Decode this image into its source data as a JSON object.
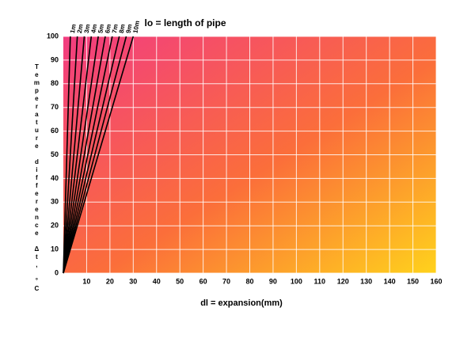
{
  "chart_data": {
    "type": "line",
    "title": "lo = length of pipe",
    "x_label": "dl = expansion(mm)",
    "y_label": "Temperature difference Δt, °C",
    "xlim": [
      0,
      160
    ],
    "ylim": [
      0,
      100
    ],
    "xticks": [
      10,
      20,
      30,
      40,
      50,
      60,
      70,
      80,
      90,
      100,
      110,
      120,
      130,
      140,
      150,
      160
    ],
    "yticks": [
      0,
      10,
      20,
      30,
      40,
      50,
      60,
      70,
      80,
      90,
      100
    ],
    "grid": true,
    "series": [
      {
        "name": "1m",
        "color": "#000000",
        "x": [
          0,
          3
        ],
        "values": [
          0,
          100
        ]
      },
      {
        "name": "2m",
        "color": "#000000",
        "x": [
          0,
          6
        ],
        "values": [
          0,
          100
        ]
      },
      {
        "name": "3m",
        "color": "#000000",
        "x": [
          0,
          9
        ],
        "values": [
          0,
          100
        ]
      },
      {
        "name": "4m",
        "color": "#000000",
        "x": [
          0,
          12
        ],
        "values": [
          0,
          100
        ]
      },
      {
        "name": "5m",
        "color": "#000000",
        "x": [
          0,
          15
        ],
        "values": [
          0,
          100
        ]
      },
      {
        "name": "6m",
        "color": "#000000",
        "x": [
          0,
          18
        ],
        "values": [
          0,
          100
        ]
      },
      {
        "name": "7m",
        "color": "#000000",
        "x": [
          0,
          21
        ],
        "values": [
          0,
          100
        ]
      },
      {
        "name": "8m",
        "color": "#000000",
        "x": [
          0,
          24
        ],
        "values": [
          0,
          100
        ]
      },
      {
        "name": "9m",
        "color": "#000000",
        "x": [
          0,
          27
        ],
        "values": [
          0,
          100
        ]
      },
      {
        "name": "10m",
        "color": "#000000",
        "x": [
          0,
          30
        ],
        "values": [
          0,
          100
        ]
      }
    ]
  }
}
